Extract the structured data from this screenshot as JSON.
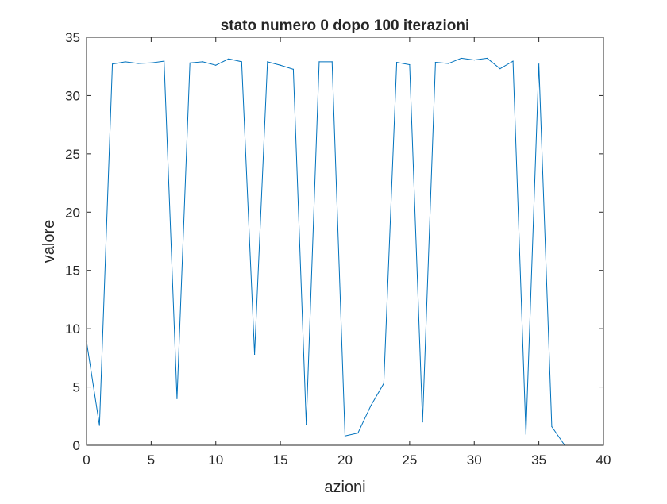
{
  "chart_data": {
    "type": "line",
    "title": "stato numero 0 dopo 100 iterazioni",
    "xlabel": "azioni",
    "ylabel": "valore",
    "xlim": [
      0,
      40
    ],
    "ylim": [
      0,
      35
    ],
    "xticks": [
      0,
      5,
      10,
      15,
      20,
      25,
      30,
      35,
      40
    ],
    "yticks": [
      0,
      5,
      10,
      15,
      20,
      25,
      30,
      35
    ],
    "grid": false,
    "series_color": "#0072BD",
    "axis_color": "#262626",
    "series": [
      {
        "x": [
          0,
          1,
          2,
          3,
          4,
          5,
          6,
          7,
          8,
          9,
          10,
          11,
          12,
          13,
          14,
          15,
          16,
          17,
          18,
          19,
          20,
          21,
          22,
          23,
          24,
          25,
          26,
          27,
          28,
          29,
          30,
          31,
          32,
          33,
          34,
          35,
          36,
          37
        ],
        "values": [
          8.9,
          1.7,
          32.7,
          32.9,
          32.75,
          32.8,
          32.95,
          4.0,
          32.8,
          32.9,
          32.6,
          33.15,
          32.9,
          7.8,
          32.9,
          32.6,
          32.25,
          1.8,
          32.9,
          32.9,
          0.8,
          1.05,
          3.4,
          5.3,
          32.85,
          32.65,
          2.0,
          32.85,
          32.75,
          33.2,
          33.05,
          33.2,
          32.3,
          32.95,
          0.95,
          32.7,
          1.6,
          0.0
        ]
      }
    ]
  }
}
